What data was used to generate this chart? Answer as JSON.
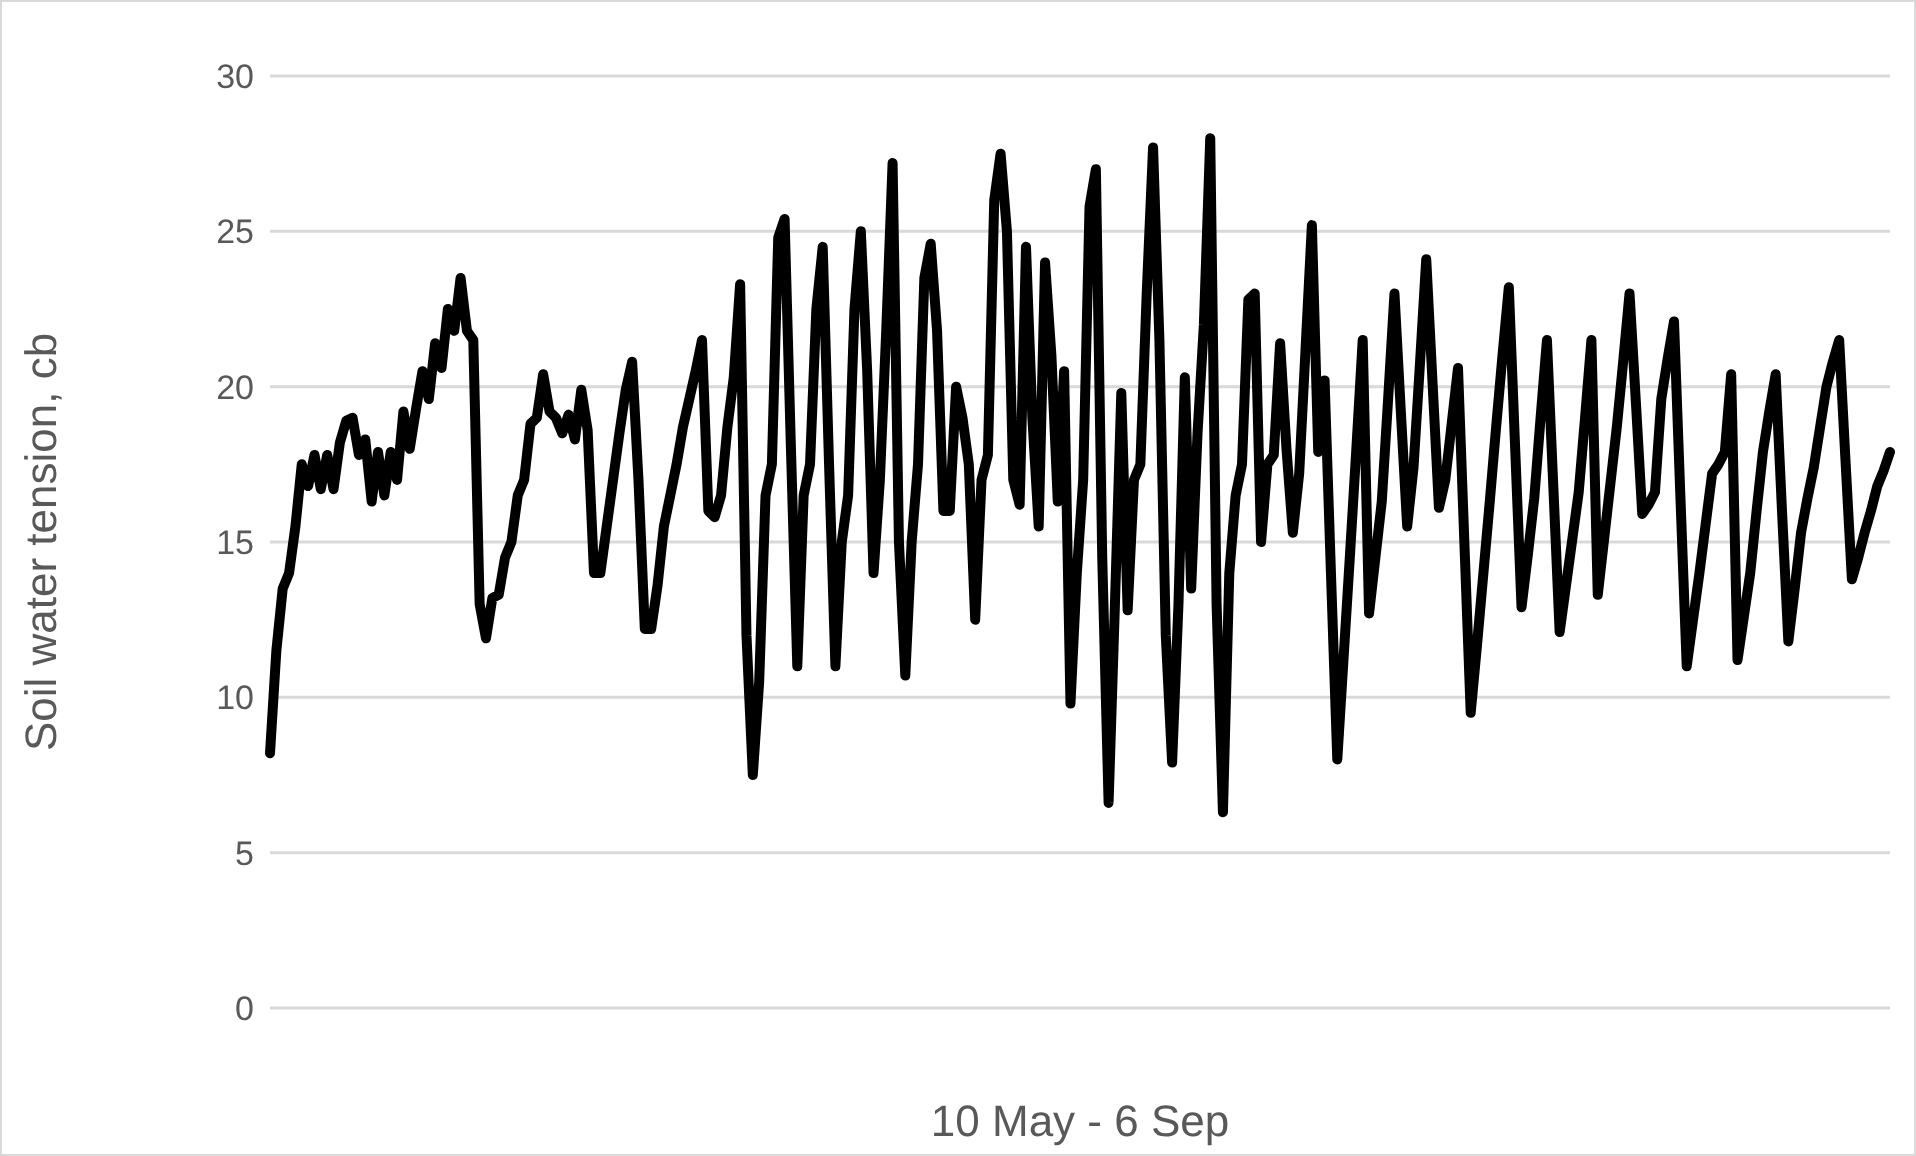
{
  "chart_data": {
    "type": "line",
    "xlabel": "10 May - 6 Sep",
    "ylabel": "Soil water tension, cb",
    "ylim": [
      0,
      30
    ],
    "yticks": [
      0,
      5,
      10,
      15,
      20,
      25,
      30
    ],
    "grid": "y",
    "legend": false,
    "marker": "none",
    "line_style": "solid",
    "categories": [
      null,
      null,
      null,
      null,
      null,
      null,
      null,
      null,
      null,
      null,
      null,
      null,
      null,
      null,
      null,
      null,
      null,
      null,
      null,
      null,
      null,
      null,
      null,
      null,
      null,
      null,
      null,
      null,
      null,
      null,
      null,
      null,
      null,
      null,
      null,
      null,
      null,
      null,
      null,
      null,
      null,
      null,
      null,
      null,
      null,
      null,
      null,
      null,
      null,
      null,
      null,
      null,
      null,
      null,
      null,
      null,
      null,
      null,
      null,
      null,
      null,
      null,
      null,
      null,
      null,
      null,
      null,
      null,
      null,
      null,
      null,
      null,
      null,
      null,
      null,
      null,
      null,
      null,
      null,
      null,
      null,
      null,
      null,
      null,
      null,
      null,
      null,
      null,
      null,
      null,
      null,
      null,
      null,
      null,
      null,
      null,
      null,
      null,
      null,
      null,
      null,
      null,
      null,
      null,
      null,
      null,
      null,
      null,
      null,
      null,
      null,
      null,
      null,
      null,
      null,
      null,
      null,
      null,
      null,
      null,
      null,
      null,
      null,
      null,
      null,
      null,
      null,
      null,
      null,
      null,
      null,
      null,
      null,
      null,
      null,
      null,
      null,
      null,
      null,
      null,
      null,
      null,
      null,
      null,
      null,
      null,
      null,
      null,
      null,
      null,
      null,
      null,
      null,
      null,
      null,
      null,
      null,
      null,
      null,
      null,
      null,
      null,
      null,
      null,
      null,
      null,
      null,
      null,
      null,
      null,
      null,
      null,
      null,
      null,
      null,
      null,
      null,
      null,
      null,
      null,
      null,
      null,
      null,
      null,
      null,
      null,
      null,
      null,
      null,
      null,
      null,
      null,
      null,
      null,
      null,
      null,
      null,
      null,
      null,
      null,
      null,
      null,
      null,
      null,
      null,
      null,
      null,
      null,
      null,
      null,
      null,
      null,
      null,
      null,
      null,
      null,
      null,
      null,
      null,
      null,
      null,
      null,
      null,
      null,
      null,
      null,
      null,
      null,
      null,
      null,
      null,
      null,
      null,
      null,
      null,
      null,
      null,
      null,
      null,
      null,
      null,
      null,
      null,
      null,
      null,
      null,
      null,
      null,
      null,
      null,
      null,
      null,
      null,
      null,
      null,
      null
    ],
    "series": [
      {
        "color": "#000000",
        "values": [
          8.2,
          11.5,
          13.5,
          14,
          15.5,
          17.5,
          16.8,
          17.8,
          16.7,
          17.8,
          16.7,
          18.2,
          18.9,
          19,
          17.8,
          18.3,
          16.3,
          17.9,
          16.5,
          17.9,
          17,
          19.2,
          18,
          19.3,
          20.5,
          19.6,
          21.4,
          20.6,
          22.5,
          21.8,
          23.5,
          21.8,
          21.5,
          13,
          11.9,
          13.2,
          13.3,
          14.5,
          15,
          16.5,
          17,
          18.8,
          19,
          20.4,
          19.2,
          19,
          18.5,
          19.1,
          18.3,
          19.9,
          18.6,
          14,
          14,
          15.5,
          17,
          18.5,
          19.9,
          20.8,
          17,
          12.2,
          12.2,
          13.6,
          15.5,
          16.5,
          17.5,
          18.7,
          19.6,
          20.5,
          21.5,
          16,
          15.8,
          16.5,
          18.7,
          20.3,
          23.3,
          12,
          7.5,
          10.5,
          16.5,
          17.5,
          24.8,
          25.4,
          18,
          11,
          16.5,
          17.5,
          22.5,
          24.5,
          17.5,
          11,
          15,
          16.5,
          22.5,
          25,
          20.5,
          14,
          17,
          21.8,
          27.2,
          15,
          10.7,
          15,
          17.5,
          23.5,
          24.6,
          21.8,
          16,
          16,
          20,
          19,
          17.5,
          12.5,
          17,
          17.8,
          26,
          27.5,
          25,
          17,
          16.2,
          24.5,
          19,
          15.5,
          24,
          21,
          16.3,
          20.5,
          9.8,
          14,
          17,
          25.8,
          27,
          14.5,
          6.6,
          13,
          19.8,
          12.8,
          17,
          17.5,
          23,
          27.7,
          21.5,
          12,
          7.9,
          13,
          20.3,
          13.5,
          18.5,
          22,
          28,
          13,
          6.3,
          14,
          16.5,
          17.5,
          22.8,
          23,
          15,
          17.5,
          17.8,
          21.4,
          18,
          15.3,
          17.2,
          21.2,
          25.2,
          17.9,
          20.2,
          14,
          8,
          11.3,
          14.6,
          18,
          21.5,
          12.7,
          14.5,
          16.3,
          19.6,
          23,
          19.2,
          15.5,
          17.4,
          20.7,
          24.1,
          20.1,
          16.1,
          17,
          18.8,
          20.6,
          15,
          9.5,
          11.7,
          14,
          16.3,
          18.7,
          21,
          23.2,
          18,
          12.9,
          14.6,
          16.4,
          19,
          21.5,
          16.8,
          12.1,
          13.6,
          15.1,
          16.6,
          19,
          21.5,
          13.3,
          15.1,
          16.9,
          18.7,
          20.8,
          23,
          19.5,
          15.9,
          16.2,
          16.6,
          19.6,
          20.9,
          22.1,
          16.5,
          11,
          12.5,
          14,
          15.6,
          17.2,
          17.5,
          17.9,
          20.4,
          11.2,
          12.6,
          14,
          16,
          17.9,
          19.2,
          20.4,
          16,
          11.8,
          13.5,
          15.3,
          16.4,
          17.4,
          18.7,
          20,
          20.8,
          21.5,
          17.6,
          13.8,
          14.5,
          15.3,
          16,
          16.8,
          17.3,
          17.9
        ]
      }
    ]
  }
}
